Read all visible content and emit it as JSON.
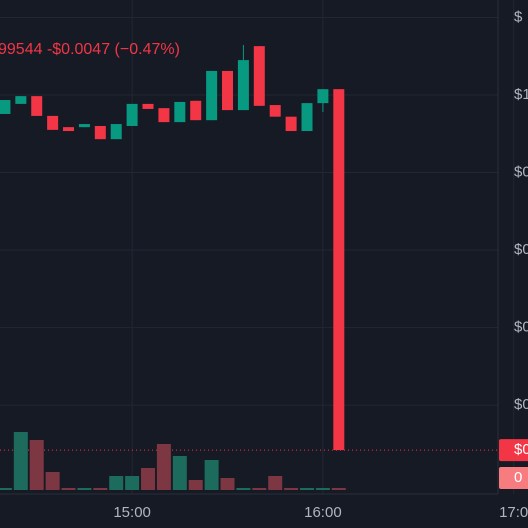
{
  "chart_data": {
    "type": "candlestick",
    "title": "99544  -$0.0047 (−0.47%)",
    "x": [
      0,
      1,
      2,
      3,
      4,
      5,
      6,
      7,
      8,
      9,
      10,
      11,
      12,
      13,
      14,
      15,
      16,
      17,
      18,
      19,
      20,
      21
    ],
    "open": [
      0.951,
      0.977,
      0.997,
      0.946,
      0.917,
      0.917,
      0.92,
      0.886,
      0.92,
      0.977,
      0.966,
      0.93,
      0.985,
      0.935,
      1.062,
      0.961,
      1.126,
      0.974,
      0.944,
      0.907,
      0.979,
      1.015
    ],
    "high": [
      0.987,
      0.997,
      0.997,
      0.946,
      0.917,
      0.925,
      0.92,
      0.925,
      0.977,
      0.977,
      0.966,
      0.982,
      0.985,
      1.062,
      1.062,
      1.129,
      1.126,
      0.974,
      0.944,
      0.979,
      1.015,
      1.015
    ],
    "low": [
      0.951,
      0.977,
      0.946,
      0.91,
      0.907,
      0.917,
      0.886,
      0.886,
      0.92,
      0.964,
      0.93,
      0.93,
      0.935,
      0.935,
      0.961,
      0.961,
      0.972,
      0.944,
      0.907,
      0.907,
      0.956,
      0.084
    ],
    "close": [
      0.987,
      0.997,
      0.946,
      0.91,
      0.907,
      0.925,
      0.886,
      0.925,
      0.977,
      0.964,
      0.93,
      0.982,
      0.935,
      1.062,
      0.961,
      1.09,
      0.972,
      0.944,
      0.907,
      0.979,
      1.015,
      0.084
    ],
    "volume": [
      2,
      58,
      50,
      18,
      2,
      2,
      2,
      14,
      14,
      22,
      46,
      34,
      10,
      30,
      12,
      2,
      2,
      14,
      2,
      2,
      2,
      2
    ],
    "up_color": "#089981",
    "down_color": "#f23645",
    "volume_up_color": "#1d6b5c",
    "volume_down_color": "#7c3742",
    "xlim": [
      -0.31,
      32.9
    ],
    "ylim": [
      -0.117,
      1.245
    ],
    "vlim": [
      0,
      100
    ],
    "xticks": [
      {
        "value": 8,
        "label": "15:00"
      },
      {
        "value": 20,
        "label": "16:00"
      },
      {
        "value": 32,
        "label": "17:0"
      }
    ],
    "yticks": [
      0.2,
      0.4,
      0.6,
      0.8,
      1.0,
      1.2
    ],
    "ytick_texts": [
      "$0",
      "$0",
      "$0",
      "$0",
      "$1",
      "$"
    ],
    "grid": true,
    "price_tag": "$0",
    "volume_tag": "0"
  }
}
